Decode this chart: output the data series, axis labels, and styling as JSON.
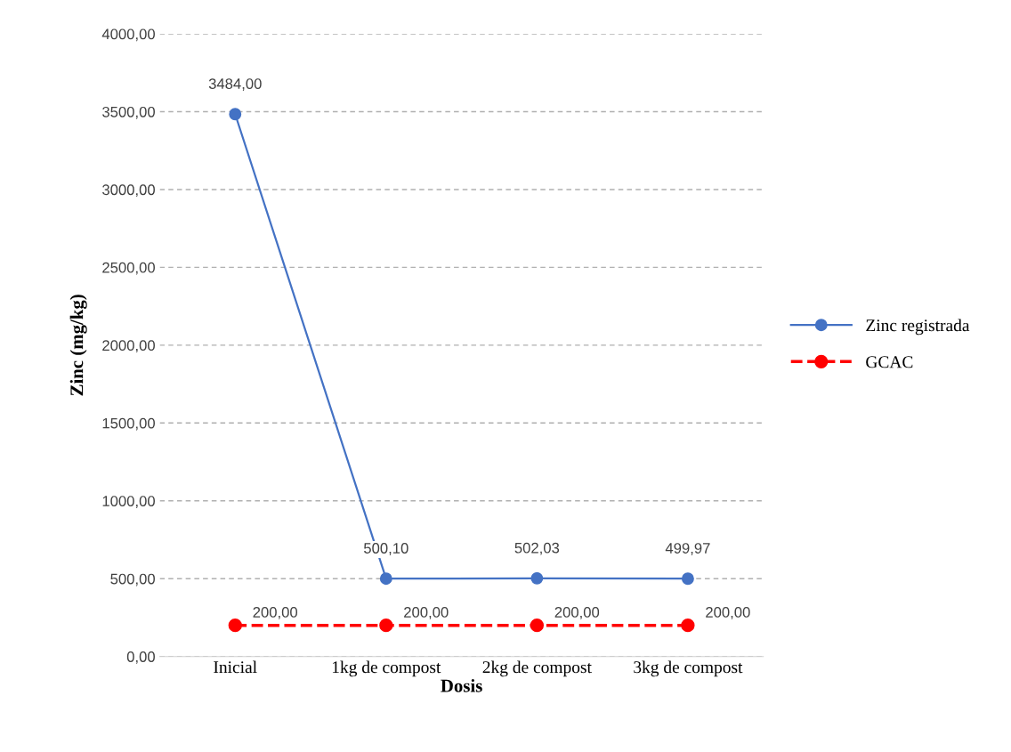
{
  "chart_data": {
    "type": "line",
    "xlabel": "Dosis",
    "ylabel": "Zinc (mg/kg)",
    "categories": [
      "Inicial",
      "1kg de compost",
      "2kg de compost",
      "3kg de compost"
    ],
    "series": [
      {
        "name": "Zinc registrada",
        "color": "#4472c4",
        "values": [
          3484.0,
          500.1,
          502.03,
          499.97
        ],
        "value_labels": [
          "3484,00",
          "500,10",
          "502,03",
          "499,97"
        ],
        "line_style": "solid",
        "marker": "circle"
      },
      {
        "name": "GCAC",
        "color": "#ff0000",
        "values": [
          200.0,
          200.0,
          200.0,
          200.0
        ],
        "value_labels": [
          "200,00",
          "200,00",
          "200,00",
          "200,00"
        ],
        "line_style": "dashed",
        "marker": "circle"
      }
    ],
    "ylim": [
      0,
      4000
    ],
    "yticks": [
      {
        "value": 0,
        "label": "0,00"
      },
      {
        "value": 500,
        "label": "500,00"
      },
      {
        "value": 1000,
        "label": "1000,00"
      },
      {
        "value": 1500,
        "label": "1500,00"
      },
      {
        "value": 2000,
        "label": "2000,00"
      },
      {
        "value": 2500,
        "label": "2500,00"
      },
      {
        "value": 3000,
        "label": "3000,00"
      },
      {
        "value": 3500,
        "label": "3500,00"
      },
      {
        "value": 4000,
        "label": "4000,00"
      }
    ],
    "grid": "y",
    "legend": "right"
  }
}
